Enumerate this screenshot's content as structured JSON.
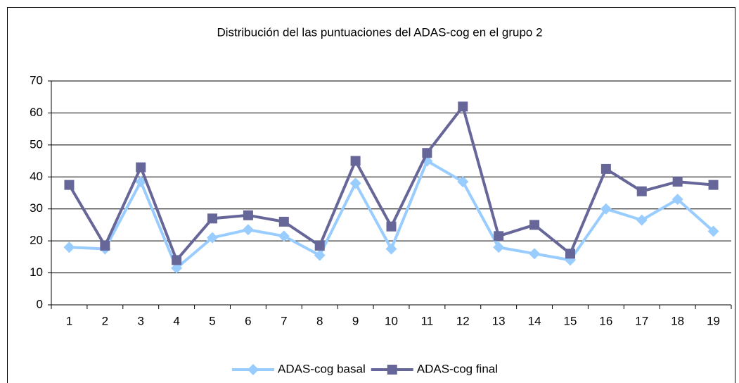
{
  "chart_data": {
    "type": "line",
    "title": "Distribución del las puntuaciones del ADAS-cog en el grupo 2",
    "categories": [
      "1",
      "2",
      "3",
      "4",
      "5",
      "6",
      "7",
      "8",
      "9",
      "10",
      "11",
      "12",
      "13",
      "14",
      "15",
      "16",
      "17",
      "18",
      "19"
    ],
    "series": [
      {
        "name": "ADAS-cog basal",
        "color": "#99ccff",
        "marker": "diamond",
        "values": [
          18,
          17.5,
          38.5,
          11.5,
          21,
          23.5,
          21.5,
          15.5,
          38,
          17.5,
          45,
          38.5,
          18,
          16,
          14,
          30,
          26.5,
          33,
          23
        ]
      },
      {
        "name": "ADAS-cog final",
        "color": "#666699",
        "marker": "square",
        "values": [
          37.5,
          18.5,
          43,
          14,
          27,
          28,
          26,
          18.5,
          45,
          24.5,
          47.5,
          62,
          21.5,
          25,
          16,
          42.5,
          35.5,
          38.5,
          37.5
        ]
      }
    ],
    "ylim": [
      0,
      70
    ],
    "yticks": [
      0,
      10,
      20,
      30,
      40,
      50,
      60,
      70
    ],
    "grid": true,
    "legend": "bottom"
  }
}
